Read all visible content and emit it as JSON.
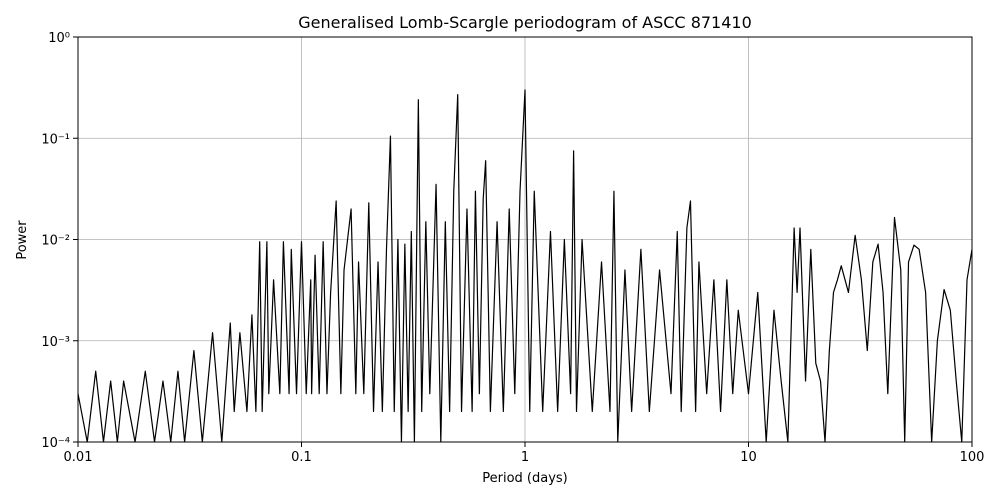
{
  "chart_data": {
    "type": "line",
    "title": "Generalised Lomb-Scargle periodogram of ASCC 871410",
    "x_label": "Period (days)",
    "y_label": "Power",
    "x_log": true,
    "y_log": true,
    "grid": true,
    "xlim": [
      0.01,
      100
    ],
    "ylim": [
      0.0001,
      1
    ],
    "xticks": [
      0.01,
      0.1,
      1,
      10,
      100
    ],
    "yticks": [
      {
        "value": 0.0001,
        "label": "10⁻⁴"
      },
      {
        "value": 0.001,
        "label": "10⁻³"
      },
      {
        "value": 0.01,
        "label": "10⁻²"
      },
      {
        "value": 0.1,
        "label": "10⁻¹"
      },
      {
        "value": 1,
        "label": "10⁰"
      }
    ],
    "series": [
      {
        "color": "#000000",
        "x": [
          0.01,
          0.011,
          0.012,
          0.013,
          0.014,
          0.015,
          0.016,
          0.018,
          0.02,
          0.022,
          0.024,
          0.026,
          0.028,
          0.03,
          0.033,
          0.036,
          0.04,
          0.044,
          0.048,
          0.05,
          0.053,
          0.057,
          0.06,
          0.0625,
          0.065,
          0.0667,
          0.07,
          0.0714,
          0.075,
          0.08,
          0.083,
          0.088,
          0.09,
          0.095,
          0.1,
          0.105,
          0.11,
          0.111,
          0.115,
          0.12,
          0.125,
          0.13,
          0.135,
          0.1429,
          0.15,
          0.155,
          0.1667,
          0.175,
          0.18,
          0.19,
          0.2,
          0.21,
          0.22,
          0.23,
          0.24,
          0.25,
          0.26,
          0.27,
          0.28,
          0.29,
          0.3,
          0.31,
          0.32,
          0.3333,
          0.345,
          0.36,
          0.375,
          0.4,
          0.42,
          0.44,
          0.46,
          0.48,
          0.5,
          0.52,
          0.55,
          0.58,
          0.6,
          0.625,
          0.65,
          0.6667,
          0.7,
          0.75,
          0.8,
          0.85,
          0.9,
          0.95,
          1.0,
          1.05,
          1.1,
          1.2,
          1.3,
          1.4,
          1.5,
          1.6,
          1.65,
          1.7,
          1.8,
          2.0,
          2.2,
          2.4,
          2.5,
          2.6,
          2.8,
          3.0,
          3.3,
          3.6,
          4.0,
          4.5,
          4.8,
          5.0,
          5.3,
          5.5,
          5.8,
          6.0,
          6.5,
          7.0,
          7.5,
          8.0,
          8.5,
          9.0,
          10,
          11,
          12,
          13,
          14,
          15,
          16,
          16.5,
          17,
          18,
          19,
          20,
          21,
          22,
          23,
          24,
          25,
          26,
          28,
          30,
          32,
          34,
          36,
          38,
          40,
          42,
          45,
          48,
          50,
          52,
          55,
          58,
          62,
          66,
          70,
          75,
          80,
          85,
          90,
          95,
          100
        ],
        "values": [
          0.0003,
          0.0001,
          0.0005,
          0.0001,
          0.0004,
          0.0001,
          0.0004,
          0.0001,
          0.0005,
          0.0001,
          0.0004,
          0.0001,
          0.0005,
          0.0001,
          0.0008,
          0.0001,
          0.0012,
          0.0001,
          0.0015,
          0.0002,
          0.0012,
          0.0002,
          0.0018,
          0.0002,
          0.0095,
          0.0002,
          0.0095,
          0.0003,
          0.004,
          0.0003,
          0.0095,
          0.0003,
          0.008,
          0.0003,
          0.0095,
          0.0003,
          0.004,
          0.0003,
          0.007,
          0.0003,
          0.0095,
          0.0003,
          0.003,
          0.024,
          0.0003,
          0.005,
          0.02,
          0.0003,
          0.006,
          0.0003,
          0.023,
          0.0002,
          0.006,
          0.0002,
          0.008,
          0.105,
          0.0002,
          0.01,
          0.0001,
          0.009,
          0.0002,
          0.012,
          0.0001,
          0.24,
          0.0002,
          0.015,
          0.0003,
          0.035,
          0.0001,
          0.015,
          0.0002,
          0.03,
          0.27,
          0.0002,
          0.02,
          0.0002,
          0.03,
          0.0003,
          0.025,
          0.06,
          0.0002,
          0.015,
          0.0002,
          0.02,
          0.0003,
          0.03,
          0.3,
          0.0002,
          0.03,
          0.0002,
          0.012,
          0.0002,
          0.01,
          0.0003,
          0.075,
          0.0002,
          0.01,
          0.0002,
          0.006,
          0.0002,
          0.03,
          0.0001,
          0.005,
          0.0002,
          0.008,
          0.0002,
          0.005,
          0.0003,
          0.012,
          0.0002,
          0.013,
          0.024,
          0.0002,
          0.006,
          0.0003,
          0.004,
          0.0002,
          0.004,
          0.0003,
          0.002,
          0.0003,
          0.003,
          0.0001,
          0.002,
          0.0004,
          0.0001,
          0.013,
          0.003,
          0.013,
          0.0004,
          0.008,
          0.0006,
          0.0004,
          0.0001,
          0.0008,
          0.003,
          0.004,
          0.0055,
          0.003,
          0.011,
          0.004,
          0.0008,
          0.006,
          0.009,
          0.003,
          0.0003,
          0.0165,
          0.005,
          0.0001,
          0.006,
          0.0088,
          0.008,
          0.003,
          0.0001,
          0.001,
          0.0032,
          0.002,
          0.0004,
          0.0001,
          0.004,
          0.008
        ]
      }
    ]
  }
}
